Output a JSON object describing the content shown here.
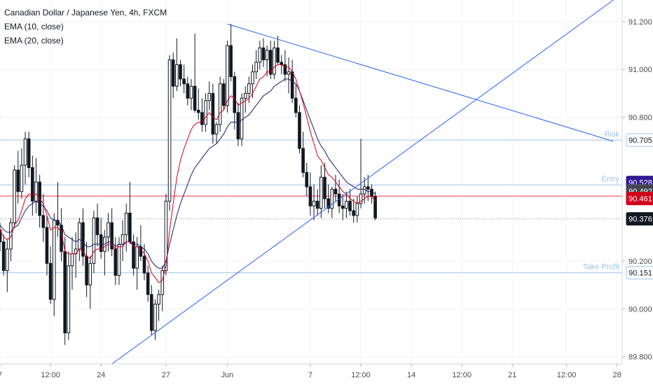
{
  "header": {
    "title": "Canadian Dollar / Japanese Yen, 4h, FXCM",
    "indicators": [
      "EMA (10, close)",
      "EMA (20, close)"
    ]
  },
  "colors": {
    "up": "#131722",
    "down": "#131722",
    "ema10": "#d0021b",
    "ema20": "#1c1c6b",
    "trendline": "#2962ff",
    "level": "#9fc5e8",
    "price_line": "#f23645",
    "grid": "#f0f3fa",
    "axis_text": "#4a4a4a"
  },
  "chart_data": {
    "type": "candlestick",
    "ylim": [
      89.77,
      91.29
    ],
    "y_ticks": [
      89.8,
      90.0,
      90.2,
      90.8,
      91.0,
      91.2
    ],
    "y_tick_labels": [
      "89.800",
      "90.000",
      "90.200",
      "90.800",
      "91.000",
      "91.200"
    ],
    "x_ticks": [
      {
        "label": "7",
        "bar": 0
      },
      {
        "label": "12:00",
        "bar": 14
      },
      {
        "label": "24",
        "bar": 28
      },
      {
        "label": "27",
        "bar": 46
      },
      {
        "label": "Jun",
        "bar": 63
      },
      {
        "label": "7",
        "bar": 86
      },
      {
        "label": "12:00",
        "bar": 100
      },
      {
        "label": "14",
        "bar": 114
      },
      {
        "label": "12:00",
        "bar": 128
      },
      {
        "label": "21",
        "bar": 142
      },
      {
        "label": "12:00",
        "bar": 157
      },
      {
        "label": "28",
        "bar": 171
      }
    ],
    "candles": [
      [
        90.33,
        90.36,
        90.24,
        90.28
      ],
      [
        90.28,
        90.31,
        90.14,
        90.16
      ],
      [
        90.16,
        90.29,
        90.07,
        90.25
      ],
      [
        90.25,
        90.38,
        90.2,
        90.36
      ],
      [
        90.36,
        90.6,
        90.34,
        90.58
      ],
      [
        90.58,
        90.66,
        90.44,
        90.49
      ],
      [
        90.49,
        90.67,
        90.46,
        90.6
      ],
      [
        90.6,
        90.74,
        90.52,
        90.71
      ],
      [
        90.71,
        90.74,
        90.55,
        90.59
      ],
      [
        90.59,
        90.64,
        90.39,
        90.45
      ],
      [
        90.45,
        90.63,
        90.4,
        90.53
      ],
      [
        90.53,
        90.56,
        90.34,
        90.39
      ],
      [
        90.39,
        90.48,
        90.28,
        90.34
      ],
      [
        90.34,
        90.39,
        90.14,
        90.19
      ],
      [
        90.19,
        90.26,
        90.02,
        90.04
      ],
      [
        90.04,
        90.4,
        89.97,
        90.37
      ],
      [
        90.37,
        90.53,
        90.3,
        90.35
      ],
      [
        90.35,
        90.42,
        90.2,
        90.24
      ],
      [
        90.24,
        90.3,
        89.85,
        89.9
      ],
      [
        89.9,
        90.24,
        89.87,
        90.18
      ],
      [
        90.18,
        90.3,
        90.08,
        90.23
      ],
      [
        90.23,
        90.32,
        90.13,
        90.25
      ],
      [
        90.25,
        90.38,
        90.2,
        90.36
      ],
      [
        90.36,
        90.42,
        90.18,
        90.22
      ],
      [
        90.22,
        90.28,
        90.05,
        90.1
      ],
      [
        90.1,
        90.22,
        90.0,
        90.19
      ],
      [
        90.19,
        90.41,
        90.15,
        90.38
      ],
      [
        90.38,
        90.44,
        90.26,
        90.31
      ],
      [
        90.31,
        90.38,
        90.21,
        90.24
      ],
      [
        90.24,
        90.33,
        90.14,
        90.3
      ],
      [
        90.3,
        90.4,
        90.24,
        90.36
      ],
      [
        90.36,
        90.42,
        90.22,
        90.25
      ],
      [
        90.25,
        90.3,
        90.1,
        90.14
      ],
      [
        90.14,
        90.3,
        90.1,
        90.27
      ],
      [
        90.27,
        90.37,
        90.2,
        90.31
      ],
      [
        90.31,
        90.44,
        90.24,
        90.4
      ],
      [
        90.4,
        90.53,
        90.27,
        90.28
      ],
      [
        90.28,
        90.31,
        90.14,
        90.17
      ],
      [
        90.17,
        90.3,
        90.08,
        90.26
      ],
      [
        90.26,
        90.35,
        90.2,
        90.22
      ],
      [
        90.22,
        90.27,
        90.12,
        90.15
      ],
      [
        90.15,
        90.18,
        90.03,
        90.06
      ],
      [
        90.06,
        90.1,
        89.89,
        89.91
      ],
      [
        89.91,
        90.04,
        89.87,
        90.02
      ],
      [
        90.02,
        90.08,
        89.95,
        90.06
      ],
      [
        90.06,
        90.18,
        89.99,
        90.16
      ],
      [
        90.16,
        90.48,
        90.14,
        90.45
      ],
      [
        90.45,
        91.06,
        90.41,
        91.04
      ],
      [
        91.04,
        91.07,
        90.88,
        90.93
      ],
      [
        90.93,
        91.13,
        90.91,
        91.02
      ],
      [
        91.02,
        91.04,
        90.93,
        90.96
      ],
      [
        90.96,
        91.02,
        90.9,
        90.94
      ],
      [
        90.94,
        90.97,
        90.85,
        90.88
      ],
      [
        90.88,
        90.96,
        90.83,
        90.93
      ],
      [
        90.93,
        91.15,
        90.82,
        90.83
      ],
      [
        90.83,
        90.92,
        90.79,
        90.82
      ],
      [
        90.82,
        90.88,
        90.74,
        90.77
      ],
      [
        90.77,
        90.9,
        90.74,
        90.87
      ],
      [
        90.87,
        90.95,
        90.83,
        90.9
      ],
      [
        90.9,
        90.94,
        90.69,
        90.73
      ],
      [
        90.73,
        90.78,
        90.69,
        90.77
      ],
      [
        90.77,
        90.97,
        90.74,
        90.94
      ],
      [
        90.94,
        90.96,
        90.83,
        90.85
      ],
      [
        90.85,
        91.12,
        90.82,
        91.1
      ],
      [
        91.1,
        91.19,
        90.95,
        90.97
      ],
      [
        90.97,
        90.99,
        90.75,
        90.82
      ],
      [
        90.82,
        90.86,
        90.68,
        90.71
      ],
      [
        90.71,
        90.9,
        90.68,
        90.88
      ],
      [
        90.88,
        90.93,
        90.82,
        90.9
      ],
      [
        90.9,
        90.97,
        90.86,
        90.94
      ],
      [
        90.94,
        91.02,
        90.88,
        90.99
      ],
      [
        90.99,
        91.08,
        90.96,
        91.03
      ],
      [
        91.03,
        91.12,
        91.0,
        91.09
      ],
      [
        91.09,
        91.13,
        91.01,
        91.04
      ],
      [
        91.04,
        91.1,
        90.97,
        91.08
      ],
      [
        91.08,
        91.12,
        90.96,
        90.98
      ],
      [
        90.98,
        91.12,
        90.96,
        91.09
      ],
      [
        91.09,
        91.14,
        91.02,
        91.03
      ],
      [
        91.03,
        91.06,
        90.98,
        91.02
      ],
      [
        91.02,
        91.08,
        90.95,
        90.98
      ],
      [
        90.98,
        91.05,
        90.9,
        90.99
      ],
      [
        90.99,
        91.04,
        90.86,
        90.88
      ],
      [
        90.88,
        90.94,
        90.8,
        90.82
      ],
      [
        90.82,
        90.85,
        90.65,
        90.67
      ],
      [
        90.67,
        90.74,
        90.55,
        90.57
      ],
      [
        90.57,
        90.61,
        90.47,
        90.51
      ],
      [
        90.51,
        90.57,
        90.39,
        90.43
      ],
      [
        90.43,
        90.52,
        90.37,
        90.45
      ],
      [
        90.45,
        90.5,
        90.39,
        90.42
      ],
      [
        90.42,
        90.6,
        90.38,
        90.55
      ],
      [
        90.55,
        90.61,
        90.42,
        90.46
      ],
      [
        90.46,
        90.52,
        90.4,
        90.42
      ],
      [
        90.42,
        90.51,
        90.38,
        90.5
      ],
      [
        90.5,
        90.56,
        90.45,
        90.48
      ],
      [
        90.48,
        90.54,
        90.4,
        90.43
      ],
      [
        90.43,
        90.48,
        90.37,
        90.42
      ],
      [
        90.42,
        90.49,
        90.38,
        90.45
      ],
      [
        90.45,
        90.5,
        90.39,
        90.41
      ],
      [
        90.41,
        90.46,
        90.36,
        90.39
      ],
      [
        90.39,
        90.47,
        90.36,
        90.44
      ],
      [
        90.44,
        90.71,
        90.42,
        90.48
      ],
      [
        90.48,
        90.55,
        90.44,
        90.51
      ],
      [
        90.51,
        90.56,
        90.45,
        90.5
      ],
      [
        90.5,
        90.52,
        90.44,
        90.47
      ],
      [
        90.47,
        90.49,
        90.37,
        90.38
      ]
    ],
    "ema10": [
      90.33,
      90.3,
      90.29,
      90.3,
      90.35,
      90.37,
      90.41,
      90.46,
      90.48,
      90.48,
      90.48,
      90.46,
      90.44,
      90.39,
      90.33,
      90.34,
      90.34,
      90.32,
      90.24,
      90.23,
      90.23,
      90.23,
      90.25,
      90.24,
      90.22,
      90.21,
      90.24,
      90.25,
      90.25,
      90.26,
      90.27,
      90.27,
      90.25,
      90.26,
      90.26,
      90.28,
      90.28,
      90.26,
      90.26,
      90.25,
      90.23,
      90.2,
      90.15,
      90.13,
      90.11,
      90.12,
      90.18,
      90.33,
      90.44,
      90.55,
      90.62,
      90.67,
      90.71,
      90.75,
      90.77,
      90.78,
      90.78,
      90.8,
      90.82,
      90.8,
      90.79,
      90.82,
      90.83,
      90.87,
      90.89,
      90.88,
      90.85,
      90.86,
      90.87,
      90.88,
      90.9,
      90.93,
      90.96,
      90.97,
      90.99,
      90.99,
      91.01,
      91.02,
      91.02,
      91.01,
      91.01,
      90.99,
      90.96,
      90.91,
      90.86,
      90.8,
      90.74,
      90.69,
      90.64,
      90.62,
      90.59,
      90.56,
      90.55,
      90.53,
      90.51,
      90.49,
      90.48,
      90.46,
      90.45,
      90.44,
      90.45,
      90.46,
      90.47,
      90.47,
      90.45
    ],
    "ema20": [
      90.35,
      90.33,
      90.32,
      90.32,
      90.34,
      90.35,
      90.38,
      90.41,
      90.43,
      90.44,
      90.45,
      90.44,
      90.43,
      90.41,
      90.38,
      90.37,
      90.37,
      90.35,
      90.31,
      90.3,
      90.29,
      90.28,
      90.29,
      90.28,
      90.26,
      90.26,
      90.27,
      90.27,
      90.27,
      90.27,
      90.28,
      90.28,
      90.26,
      90.27,
      90.27,
      90.28,
      90.28,
      90.27,
      90.27,
      90.26,
      90.25,
      90.23,
      90.2,
      90.18,
      90.17,
      90.17,
      90.2,
      90.27,
      90.33,
      90.39,
      90.44,
      90.48,
      90.52,
      90.56,
      90.59,
      90.61,
      90.63,
      90.65,
      90.67,
      90.68,
      90.69,
      90.71,
      90.73,
      90.76,
      90.78,
      90.78,
      90.78,
      90.79,
      90.8,
      90.81,
      90.83,
      90.85,
      90.87,
      90.89,
      90.9,
      90.91,
      90.93,
      90.94,
      90.95,
      90.96,
      90.96,
      90.95,
      90.94,
      90.91,
      90.87,
      90.83,
      90.79,
      90.75,
      90.71,
      90.68,
      90.66,
      90.63,
      90.61,
      90.59,
      90.57,
      90.55,
      90.53,
      90.52,
      90.51,
      90.5,
      90.5,
      90.5,
      90.49,
      90.49,
      90.48
    ]
  },
  "annotations": {
    "levels": [
      {
        "label": "Risk",
        "value": 90.705,
        "price_label": "90.705"
      },
      {
        "label": "Entry",
        "value": 90.518,
        "price_label": "90.518"
      },
      {
        "label": "Take Profit",
        "value": 90.151,
        "price_label": "90.151"
      }
    ],
    "price_line": {
      "value": 90.471,
      "price_label": "90.471"
    },
    "dotted_line": {
      "value": 90.376
    },
    "trendlines": [
      {
        "from": {
          "bar": 63,
          "price": 91.19
        },
        "to": {
          "bar": 170,
          "price": 90.7
        }
      },
      {
        "from": {
          "bar": 31,
          "price": 89.77
        },
        "to": {
          "bar": 170,
          "price": 91.29
        }
      }
    ],
    "price_labels": [
      {
        "text": "90.528",
        "value": 90.528,
        "bg": "#311b92",
        "fg": "#ffffff"
      },
      {
        "text": "90.492",
        "value": 90.492,
        "bg": "#434651",
        "fg": "#ffffff"
      },
      {
        "text": "90.461",
        "value": 90.461,
        "bg": "#d0021b",
        "fg": "#ffffff"
      },
      {
        "text": "90.376",
        "value": 90.376,
        "bg": "#131722",
        "fg": "#ffffff"
      }
    ]
  }
}
